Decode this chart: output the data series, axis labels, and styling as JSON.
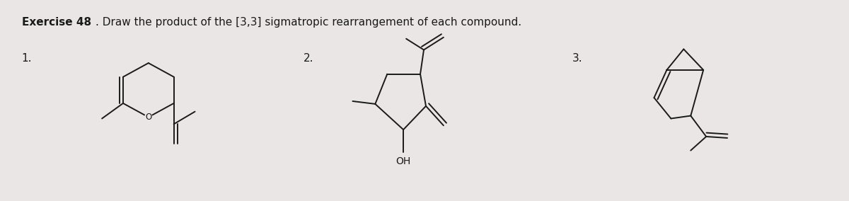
{
  "title_bold": "Exercise 48",
  "title_normal": ". Draw the product of the [3,3] sigmatropic rearrangement of each compound.",
  "background_color": "#eae6e6",
  "line_color": "#1a1a1a",
  "label_1": "1.",
  "label_2": "2.",
  "label_3": "3.",
  "oh_label": "OH",
  "figsize": [
    12.0,
    2.84
  ],
  "dpi": 100
}
